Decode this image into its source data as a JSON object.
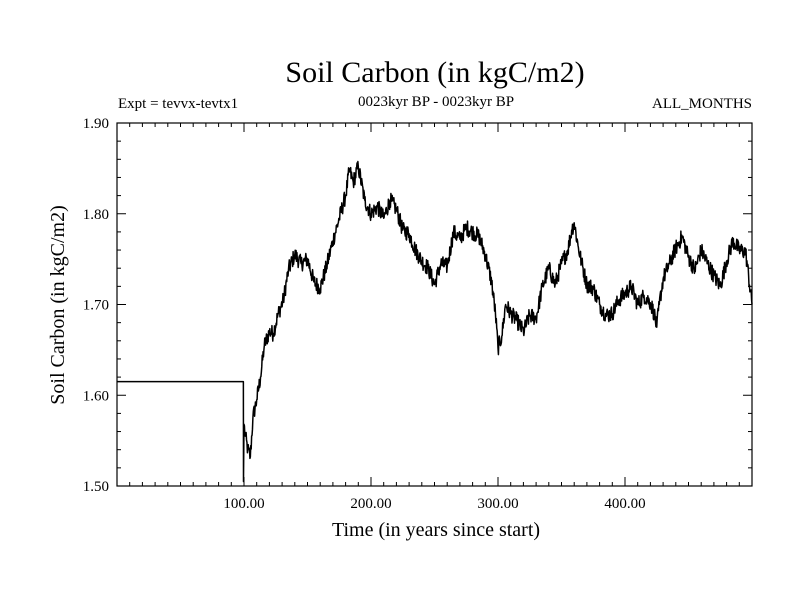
{
  "chart_data": {
    "type": "line",
    "title": "Soil Carbon (in kgC/m2)",
    "subtitle_left": "Expt = tevvx-tevtx1",
    "subtitle_center": "0023kyr BP - 0023kyr BP",
    "subtitle_right": "ALL_MONTHS",
    "xlabel": "Time (in years since start)",
    "ylabel": "Soil Carbon (in kgC/m2)",
    "xlim": [
      0,
      500
    ],
    "ylim": [
      1.5,
      1.9
    ],
    "xticks": [
      100,
      200,
      300,
      400
    ],
    "xtick_labels": [
      "100.00",
      "200.00",
      "300.00",
      "400.00"
    ],
    "yticks": [
      1.5,
      1.6,
      1.7,
      1.8,
      1.9
    ],
    "ytick_labels": [
      "1.50",
      "1.60",
      "1.70",
      "1.80",
      "1.90"
    ],
    "grid": false,
    "series": [
      {
        "color": "#000000",
        "x": [
          0,
          99.5,
          99.6,
          100,
          101,
          103,
          105,
          107,
          110,
          113,
          116,
          120,
          123,
          127,
          131,
          135,
          140,
          145,
          150,
          155,
          160,
          165,
          170,
          175,
          180,
          183,
          186,
          190,
          195,
          200,
          205,
          210,
          215,
          220,
          225,
          230,
          235,
          240,
          245,
          250,
          255,
          260,
          265,
          270,
          275,
          280,
          285,
          290,
          295,
          298,
          300,
          303,
          306,
          310,
          315,
          320,
          325,
          330,
          335,
          340,
          345,
          350,
          355,
          358,
          360,
          363,
          366,
          370,
          375,
          380,
          385,
          390,
          395,
          400,
          405,
          410,
          415,
          420,
          423,
          425,
          427,
          430,
          435,
          440,
          445,
          450,
          455,
          460,
          465,
          470,
          475,
          480,
          485,
          490,
          495,
          500
        ],
        "y": [
          1.615,
          1.615,
          1.505,
          1.568,
          1.555,
          1.54,
          1.532,
          1.575,
          1.595,
          1.62,
          1.655,
          1.67,
          1.668,
          1.69,
          1.705,
          1.738,
          1.755,
          1.745,
          1.75,
          1.725,
          1.718,
          1.742,
          1.77,
          1.795,
          1.82,
          1.848,
          1.835,
          1.852,
          1.815,
          1.8,
          1.808,
          1.795,
          1.815,
          1.805,
          1.782,
          1.778,
          1.76,
          1.748,
          1.74,
          1.722,
          1.745,
          1.742,
          1.78,
          1.772,
          1.785,
          1.78,
          1.775,
          1.755,
          1.725,
          1.69,
          1.652,
          1.665,
          1.7,
          1.69,
          1.682,
          1.67,
          1.688,
          1.685,
          1.72,
          1.74,
          1.722,
          1.745,
          1.76,
          1.782,
          1.79,
          1.765,
          1.745,
          1.722,
          1.718,
          1.7,
          1.688,
          1.69,
          1.705,
          1.712,
          1.72,
          1.7,
          1.71,
          1.702,
          1.69,
          1.675,
          1.7,
          1.728,
          1.745,
          1.762,
          1.775,
          1.752,
          1.738,
          1.76,
          1.745,
          1.732,
          1.72,
          1.748,
          1.77,
          1.76,
          1.758,
          1.7
        ]
      }
    ]
  }
}
